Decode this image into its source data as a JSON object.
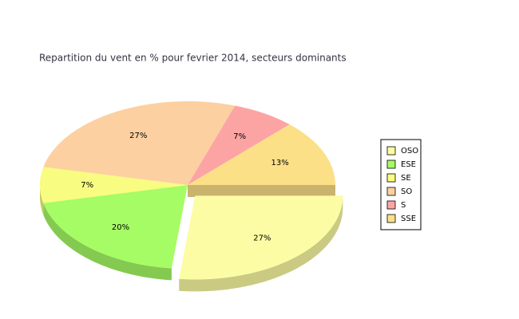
{
  "chart_data": {
    "type": "pie",
    "title": "Repartition du vent en % pour fevrier 2014, secteurs dominants",
    "categories": [
      "OSO",
      "ESE",
      "SE",
      "SO",
      "S",
      "SSE"
    ],
    "values": [
      27,
      20,
      7,
      27,
      7,
      13
    ],
    "value_labels": [
      "27%",
      "20%",
      "7%",
      "27%",
      "7%",
      "13%"
    ],
    "colors": [
      "#fcfca4",
      "#a6fc64",
      "#f8fc80",
      "#fcd0a0",
      "#fca4a4",
      "#fce088"
    ],
    "exploded": "OSO",
    "legend": "right"
  }
}
